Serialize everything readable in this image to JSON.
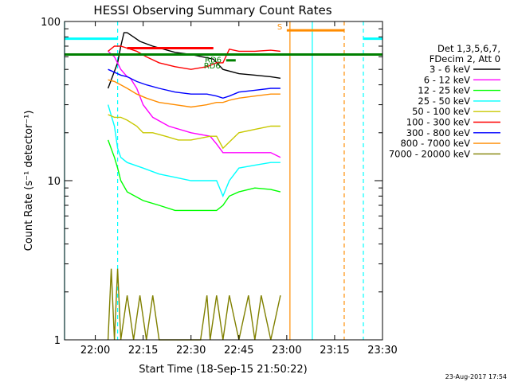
{
  "chart_data": {
    "type": "line",
    "title": "HESSI Observing Summary Count Rates",
    "xlabel": "Start Time (18-Sep-15 21:50:22)",
    "ylabel": "Count Rate (s⁻¹ detector⁻¹)",
    "xlim": [
      "21:50:22",
      "23:30:00"
    ],
    "ylim": [
      1,
      100
    ],
    "yscale": "log",
    "x_ticks": [
      "22:00",
      "22:15",
      "22:30",
      "22:45",
      "23:00",
      "23:15",
      "23:30"
    ],
    "y_ticks": [
      1,
      10,
      100
    ],
    "y_tick_labels": [
      "1",
      "10",
      "100"
    ],
    "footer": "23-Aug-2017 17:54",
    "legend": {
      "position": "right",
      "header": [
        "Det 1,3,5,6,7,",
        "FDecim 2, Att 0"
      ]
    },
    "series": [
      {
        "name": "3 - 6 keV",
        "color": "#000000",
        "x": [
          "22:04",
          "22:07",
          "22:08",
          "22:09",
          "22:10",
          "22:12",
          "22:14",
          "22:18",
          "22:25",
          "22:30",
          "22:37",
          "22:40",
          "22:45",
          "22:50",
          "22:55",
          "22:58"
        ],
        "y": [
          38,
          55,
          70,
          85,
          85,
          80,
          75,
          70,
          64,
          62,
          58,
          50,
          47,
          46,
          45,
          44
        ]
      },
      {
        "name": "6 - 12 keV",
        "color": "#ff00ff",
        "x": [
          "22:04",
          "22:06",
          "22:08",
          "22:10",
          "22:11",
          "22:13",
          "22:15",
          "22:18",
          "22:23",
          "22:30",
          "22:36",
          "22:38",
          "22:40",
          "22:45",
          "22:50",
          "22:55",
          "22:58"
        ],
        "y": [
          65,
          60,
          50,
          45,
          44,
          38,
          30,
          25,
          22,
          20,
          19,
          17,
          15,
          15,
          15,
          15,
          14
        ]
      },
      {
        "name": "12 - 25 keV",
        "color": "#00ff00",
        "x": [
          "22:04",
          "22:06",
          "22:07",
          "22:08",
          "22:10",
          "22:15",
          "22:20",
          "22:25",
          "22:30",
          "22:35",
          "22:38",
          "22:40",
          "22:42",
          "22:45",
          "22:50",
          "22:55",
          "22:58"
        ],
        "y": [
          18,
          14,
          12,
          10,
          8.5,
          7.5,
          7,
          6.5,
          6.5,
          6.5,
          6.5,
          7,
          8,
          8.5,
          9,
          8.8,
          8.5
        ]
      },
      {
        "name": "25 - 50 keV",
        "color": "#00ffff",
        "x": [
          "22:04",
          "22:06",
          "22:07",
          "22:08",
          "22:10",
          "22:15",
          "22:20",
          "22:25",
          "22:30",
          "22:35",
          "22:38",
          "22:40",
          "22:42",
          "22:45",
          "22:50",
          "22:55",
          "22:58"
        ],
        "y": [
          30,
          22,
          16,
          14,
          13,
          12,
          11,
          10.5,
          10,
          10,
          10,
          8,
          10,
          12,
          12.5,
          13,
          13
        ]
      },
      {
        "name": "50 - 100 keV",
        "color": "#c8c800",
        "x": [
          "22:04",
          "22:06",
          "22:08",
          "22:10",
          "22:13",
          "22:15",
          "22:18",
          "22:22",
          "22:26",
          "22:30",
          "22:36",
          "22:38",
          "22:40",
          "22:45",
          "22:50",
          "22:55",
          "22:58"
        ],
        "y": [
          26,
          25,
          25,
          24,
          22,
          20,
          20,
          19,
          18,
          18,
          19,
          19,
          16,
          20,
          21,
          22,
          22
        ]
      },
      {
        "name": "100 - 300 keV",
        "color": "#ff0000",
        "x": [
          "22:04",
          "22:06",
          "22:08",
          "22:10",
          "22:13",
          "22:16",
          "22:20",
          "22:25",
          "22:30",
          "22:35",
          "22:38",
          "22:40",
          "22:42",
          "22:45",
          "22:50",
          "22:55",
          "22:58"
        ],
        "y": [
          65,
          70,
          70,
          68,
          65,
          60,
          55,
          52,
          50,
          52,
          55,
          55,
          67,
          65,
          65,
          66,
          65
        ]
      },
      {
        "name": "300 - 800 keV",
        "color": "#0000ff",
        "x": [
          "22:04",
          "22:06",
          "22:08",
          "22:10",
          "22:13",
          "22:16",
          "22:20",
          "22:25",
          "22:30",
          "22:35",
          "22:38",
          "22:40",
          "22:42",
          "22:45",
          "22:50",
          "22:55",
          "22:58"
        ],
        "y": [
          50,
          48,
          46,
          45,
          42,
          40,
          38,
          36,
          35,
          35,
          34,
          33,
          34,
          36,
          37,
          38,
          38
        ]
      },
      {
        "name": "800 - 7000 keV",
        "color": "#ff8c00",
        "x": [
          "22:04",
          "22:06",
          "22:08",
          "22:10",
          "22:13",
          "22:16",
          "22:20",
          "22:25",
          "22:30",
          "22:35",
          "22:38",
          "22:40",
          "22:42",
          "22:45",
          "22:50",
          "22:55",
          "22:58"
        ],
        "y": [
          43,
          42,
          40,
          38,
          35,
          33,
          31,
          30,
          29,
          30,
          31,
          31,
          32,
          33,
          34,
          35,
          35
        ]
      },
      {
        "name": "7000 - 20000 keV",
        "color": "#808000",
        "x": [
          "22:04",
          "22:05",
          "22:06",
          "22:07",
          "22:08",
          "22:10",
          "22:12",
          "22:14",
          "22:16",
          "22:18",
          "22:20",
          "22:25",
          "22:30",
          "22:33",
          "22:35",
          "22:36",
          "22:38",
          "22:40",
          "22:42",
          "22:45",
          "22:48",
          "22:50",
          "22:52",
          "22:55",
          "22:58"
        ],
        "y": [
          1,
          2.8,
          1,
          2.8,
          1,
          1.9,
          1,
          1.9,
          1,
          1.9,
          1,
          1,
          1,
          1,
          1.9,
          1,
          1.9,
          1,
          1.9,
          1,
          1.9,
          1,
          1.9,
          1,
          1.9
        ]
      }
    ],
    "bars": [
      {
        "label": "",
        "color": "#00ffff",
        "y": 78,
        "x": [
          "21:50:22",
          "22:07"
        ]
      },
      {
        "label": "",
        "color": "#00ffff",
        "y": 78,
        "x": [
          "23:24",
          "23:30"
        ]
      },
      {
        "label": "",
        "color": "#ff0000",
        "y": 68,
        "x": [
          "22:10",
          "22:37"
        ]
      },
      {
        "label": "S",
        "color": "#ff8c00",
        "y": 88,
        "x": [
          "23:00",
          "23:18"
        ]
      },
      {
        "label": "RD6",
        "color": "#008000",
        "y": 62,
        "x": [
          "21:50:22",
          "23:30"
        ]
      },
      {
        "label": "RD6",
        "color": "#008000",
        "y": 57,
        "x": [
          "22:41",
          "22:44"
        ]
      }
    ],
    "vlines": [
      {
        "x": "21:50:22",
        "color": "#00ffff",
        "style": "solid"
      },
      {
        "x": "22:07",
        "color": "#00ffff",
        "style": "dashed"
      },
      {
        "x": "23:01",
        "color": "#ff8c00",
        "style": "solid"
      },
      {
        "x": "23:08",
        "color": "#00ffff",
        "style": "solid"
      },
      {
        "x": "23:18",
        "color": "#ff8c00",
        "style": "dashed"
      },
      {
        "x": "23:24",
        "color": "#00ffff",
        "style": "dashed"
      }
    ]
  }
}
